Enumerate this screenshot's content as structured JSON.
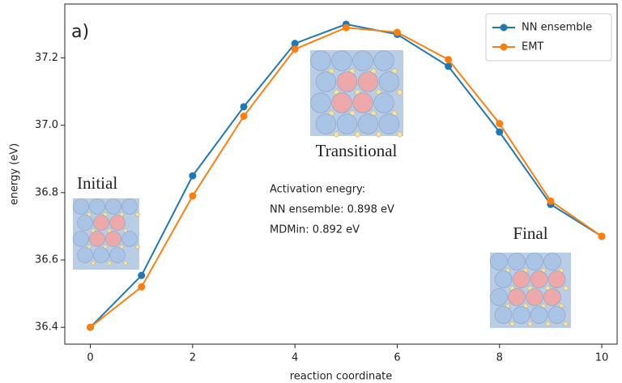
{
  "chart_data": {
    "type": "line",
    "x": [
      0,
      1,
      2,
      3,
      4,
      5,
      6,
      7,
      8,
      9,
      10
    ],
    "series": [
      {
        "name": "NN ensemble",
        "color": "#1f77b4",
        "values": [
          36.4,
          36.554,
          36.85,
          37.055,
          37.243,
          37.3,
          37.27,
          37.175,
          36.98,
          36.765,
          36.67
        ]
      },
      {
        "name": "EMT",
        "color": "#ff7f0e",
        "values": [
          36.4,
          36.52,
          36.79,
          37.027,
          37.226,
          37.29,
          37.276,
          37.195,
          37.005,
          36.775,
          36.67
        ]
      }
    ],
    "xlim": [
      -0.5,
      10.3
    ],
    "xticks": [
      0,
      2,
      4,
      6,
      8,
      10
    ],
    "ylim": [
      36.35,
      37.36
    ],
    "yticks": [
      36.4,
      36.6,
      36.8,
      37.0,
      37.2
    ],
    "xlabel": "reaction coordinate",
    "ylabel": "energy (eV)",
    "legend": "upper right",
    "annotations": [
      "a)",
      "Initial",
      "Transitional",
      "Final",
      "Activation enegry:",
      "NN ensemble: 0.898 eV",
      "MDMin: 0.892 eV"
    ]
  }
}
